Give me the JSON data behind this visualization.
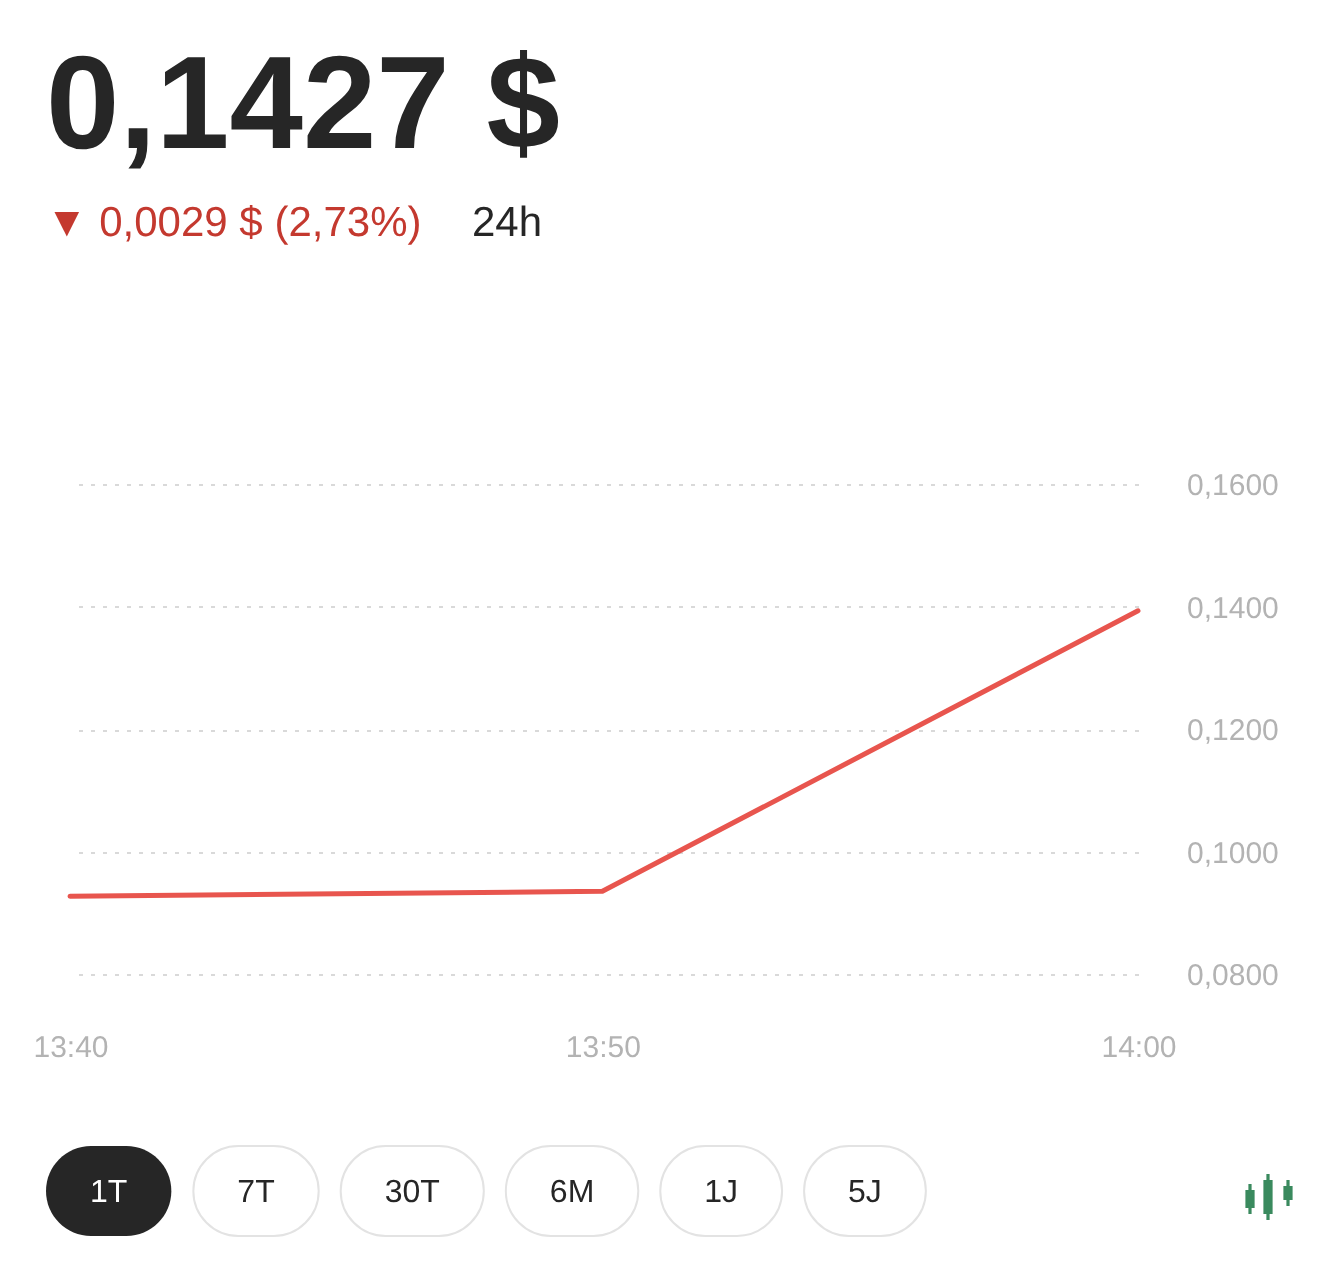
{
  "chart_data": {
    "type": "line",
    "title": "0,1427 $",
    "subtitle": "▼ 0,0029 $ (2,73%)",
    "annotations": [
      "24h",
      "1T",
      "7T",
      "30T",
      "6M",
      "1J",
      "5J"
    ],
    "x": [
      13.667,
      13.833,
      14
    ],
    "values": [
      0.0927,
      0.0935,
      0.1393
    ],
    "color": "#e8554e",
    "xlim": [
      13.667,
      14
    ],
    "xticks": [
      {
        "value": 13.667,
        "label": "13:40"
      },
      {
        "value": 13.833,
        "label": "13:50"
      },
      {
        "value": 14,
        "label": "14:00"
      }
    ],
    "ylim": [
      0.08,
      0.16
    ],
    "yticks": [
      {
        "value": 0.08,
        "label": "0,0800"
      },
      {
        "value": 0.1,
        "label": "0,1000"
      },
      {
        "value": 0.12,
        "label": "0,1200"
      },
      {
        "value": 0.14,
        "label": "0,1400"
      },
      {
        "value": 0.16,
        "label": "0,1600"
      }
    ],
    "grid": "y"
  }
}
